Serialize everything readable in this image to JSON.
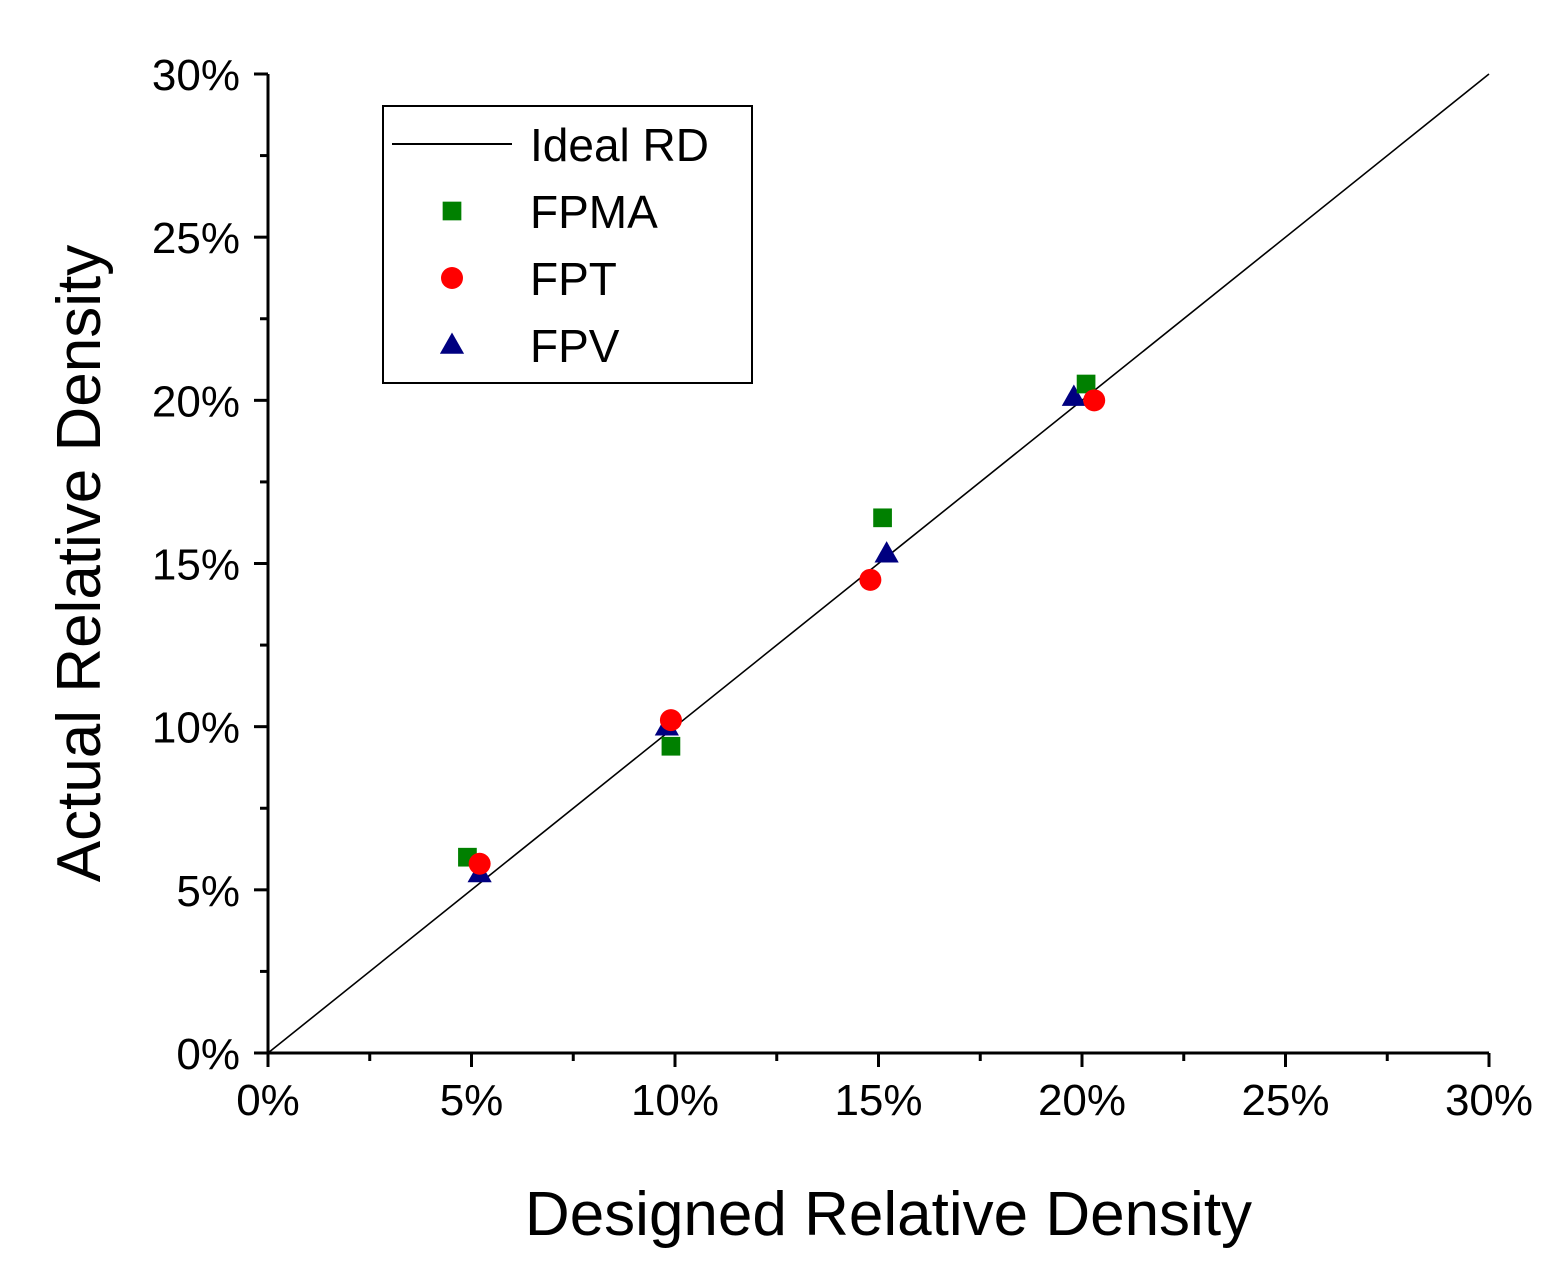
{
  "chart_data": {
    "type": "scatter",
    "xlabel": "Designed Relative Density",
    "ylabel": "Actual Relative Density",
    "xlim": [
      0,
      30
    ],
    "ylim": [
      0,
      30
    ],
    "x_unit": "%",
    "y_unit": "%",
    "xticks": [
      "0%",
      "5%",
      "10%",
      "15%",
      "20%",
      "25%",
      "30%"
    ],
    "yticks": [
      "0%",
      "5%",
      "10%",
      "15%",
      "20%",
      "25%",
      "30%"
    ],
    "grid": false,
    "legend_position": "top-left",
    "ideal_line": {
      "name": "Ideal RD",
      "x": [
        0,
        30
      ],
      "y": [
        0,
        30
      ],
      "color": "#000000"
    },
    "series": [
      {
        "name": "FPMA",
        "marker": "square",
        "color": "#008000",
        "x": [
          4.9,
          9.9,
          15.1,
          20.1
        ],
        "y": [
          6.0,
          9.4,
          16.4,
          20.5
        ]
      },
      {
        "name": "FPT",
        "marker": "circle",
        "color": "#ff0000",
        "x": [
          5.2,
          9.9,
          14.8,
          20.3
        ],
        "y": [
          5.8,
          10.2,
          14.5,
          20.0
        ]
      },
      {
        "name": "FPV",
        "marker": "triangle",
        "color": "#000080",
        "x": [
          5.2,
          9.8,
          15.2,
          19.8
        ],
        "y": [
          5.5,
          10.0,
          15.3,
          20.1
        ]
      }
    ]
  }
}
